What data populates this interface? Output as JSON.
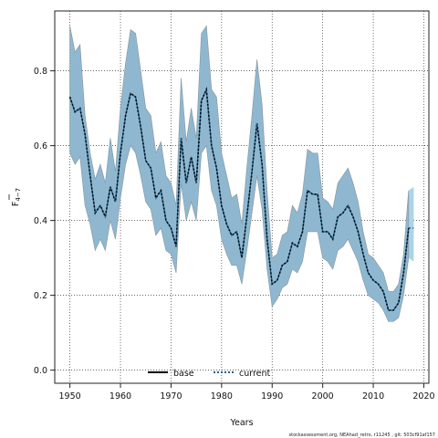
{
  "chart_data": {
    "type": "line",
    "xlabel": "Years",
    "ylabel_main": "F",
    "ylabel_sub": "4−7",
    "xlim": [
      1947,
      2021
    ],
    "ylim": [
      -0.035,
      0.96
    ],
    "xticks": [
      1950,
      1960,
      1970,
      1980,
      1990,
      2000,
      2010,
      2020
    ],
    "yticks": [
      0.0,
      0.2,
      0.4,
      0.6,
      0.8
    ],
    "ytick_labels": [
      "0.0",
      "0.2",
      "0.4",
      "0.6",
      "0.8"
    ],
    "grid": true,
    "legend_position": "bottom-center",
    "colors": {
      "band": "#8fb8d0",
      "band_edge": "#8a9aa6",
      "band_tail": "#aed3e8",
      "base": "#000000",
      "current": "#1f5f8b"
    },
    "series": [
      {
        "name": "base",
        "x": [
          1950,
          1951,
          1952,
          1953,
          1954,
          1955,
          1956,
          1957,
          1958,
          1959,
          1960,
          1961,
          1962,
          1963,
          1964,
          1965,
          1966,
          1967,
          1968,
          1969,
          1970,
          1971,
          1972,
          1973,
          1974,
          1975,
          1976,
          1977,
          1978,
          1979,
          1980,
          1981,
          1982,
          1983,
          1984,
          1985,
          1986,
          1987,
          1988,
          1989,
          1990,
          1991,
          1992,
          1993,
          1994,
          1995,
          1996,
          1997,
          1998,
          1999,
          2000,
          2001,
          2002,
          2003,
          2004,
          2005,
          2006,
          2007,
          2008,
          2009,
          2010,
          2011,
          2012,
          2013,
          2014,
          2015,
          2016,
          2017
        ],
        "values": [
          0.73,
          0.69,
          0.7,
          0.63,
          0.52,
          0.42,
          0.44,
          0.41,
          0.49,
          0.45,
          0.58,
          0.68,
          0.74,
          0.73,
          0.65,
          0.56,
          0.54,
          0.46,
          0.48,
          0.4,
          0.38,
          0.33,
          0.62,
          0.5,
          0.57,
          0.5,
          0.72,
          0.75,
          0.6,
          0.54,
          0.44,
          0.39,
          0.36,
          0.37,
          0.3,
          0.41,
          0.53,
          0.66,
          0.55,
          0.35,
          0.23,
          0.24,
          0.28,
          0.29,
          0.34,
          0.33,
          0.37,
          0.48,
          0.47,
          0.47,
          0.37,
          0.37,
          0.35,
          0.41,
          0.42,
          0.44,
          0.41,
          0.37,
          0.31,
          0.26,
          0.24,
          0.23,
          0.21,
          0.16,
          0.16,
          0.18,
          0.26,
          0.38
        ]
      },
      {
        "name": "current",
        "x": [
          1950,
          1951,
          1952,
          1953,
          1954,
          1955,
          1956,
          1957,
          1958,
          1959,
          1960,
          1961,
          1962,
          1963,
          1964,
          1965,
          1966,
          1967,
          1968,
          1969,
          1970,
          1971,
          1972,
          1973,
          1974,
          1975,
          1976,
          1977,
          1978,
          1979,
          1980,
          1981,
          1982,
          1983,
          1984,
          1985,
          1986,
          1987,
          1988,
          1989,
          1990,
          1991,
          1992,
          1993,
          1994,
          1995,
          1996,
          1997,
          1998,
          1999,
          2000,
          2001,
          2002,
          2003,
          2004,
          2005,
          2006,
          2007,
          2008,
          2009,
          2010,
          2011,
          2012,
          2013,
          2014,
          2015,
          2016,
          2017,
          2018
        ],
        "values": [
          0.73,
          0.69,
          0.7,
          0.63,
          0.52,
          0.42,
          0.44,
          0.41,
          0.49,
          0.45,
          0.58,
          0.68,
          0.74,
          0.73,
          0.65,
          0.56,
          0.54,
          0.46,
          0.48,
          0.4,
          0.38,
          0.33,
          0.62,
          0.5,
          0.57,
          0.5,
          0.72,
          0.75,
          0.6,
          0.54,
          0.44,
          0.39,
          0.36,
          0.37,
          0.3,
          0.41,
          0.53,
          0.66,
          0.55,
          0.35,
          0.23,
          0.24,
          0.28,
          0.29,
          0.34,
          0.33,
          0.37,
          0.48,
          0.47,
          0.47,
          0.37,
          0.37,
          0.35,
          0.41,
          0.42,
          0.44,
          0.41,
          0.37,
          0.31,
          0.26,
          0.24,
          0.23,
          0.21,
          0.16,
          0.16,
          0.18,
          0.26,
          0.38,
          0.38
        ]
      }
    ],
    "band": {
      "x": [
        1950,
        1951,
        1952,
        1953,
        1954,
        1955,
        1956,
        1957,
        1958,
        1959,
        1960,
        1961,
        1962,
        1963,
        1964,
        1965,
        1966,
        1967,
        1968,
        1969,
        1970,
        1971,
        1972,
        1973,
        1974,
        1975,
        1976,
        1977,
        1978,
        1979,
        1980,
        1981,
        1982,
        1983,
        1984,
        1985,
        1986,
        1987,
        1988,
        1989,
        1990,
        1991,
        1992,
        1993,
        1994,
        1995,
        1996,
        1997,
        1998,
        1999,
        2000,
        2001,
        2002,
        2003,
        2004,
        2005,
        2006,
        2007,
        2008,
        2009,
        2010,
        2011,
        2012,
        2013,
        2014,
        2015,
        2016,
        2017
      ],
      "upper": [
        0.92,
        0.85,
        0.87,
        0.68,
        0.58,
        0.51,
        0.55,
        0.5,
        0.62,
        0.53,
        0.7,
        0.82,
        0.91,
        0.9,
        0.8,
        0.7,
        0.68,
        0.58,
        0.61,
        0.52,
        0.5,
        0.44,
        0.78,
        0.61,
        0.7,
        0.62,
        0.9,
        0.92,
        0.75,
        0.73,
        0.58,
        0.52,
        0.46,
        0.47,
        0.39,
        0.54,
        0.68,
        0.83,
        0.71,
        0.48,
        0.3,
        0.31,
        0.36,
        0.37,
        0.44,
        0.42,
        0.47,
        0.59,
        0.58,
        0.58,
        0.46,
        0.45,
        0.43,
        0.5,
        0.52,
        0.54,
        0.5,
        0.45,
        0.37,
        0.31,
        0.3,
        0.28,
        0.26,
        0.21,
        0.21,
        0.23,
        0.31,
        0.48
      ],
      "lower": [
        0.58,
        0.55,
        0.57,
        0.44,
        0.39,
        0.32,
        0.35,
        0.32,
        0.4,
        0.35,
        0.46,
        0.55,
        0.6,
        0.58,
        0.52,
        0.45,
        0.43,
        0.36,
        0.38,
        0.32,
        0.31,
        0.26,
        0.5,
        0.4,
        0.45,
        0.4,
        0.58,
        0.6,
        0.48,
        0.44,
        0.35,
        0.31,
        0.28,
        0.28,
        0.23,
        0.32,
        0.42,
        0.52,
        0.43,
        0.27,
        0.17,
        0.19,
        0.22,
        0.23,
        0.27,
        0.26,
        0.29,
        0.37,
        0.37,
        0.37,
        0.3,
        0.29,
        0.27,
        0.32,
        0.33,
        0.35,
        0.32,
        0.29,
        0.24,
        0.2,
        0.19,
        0.18,
        0.16,
        0.13,
        0.13,
        0.14,
        0.2,
        0.3
      ]
    },
    "band_tail": {
      "x": [
        2017,
        2018
      ],
      "upper": [
        0.48,
        0.49
      ],
      "lower": [
        0.3,
        0.29
      ]
    }
  },
  "footnote": "stockassessment.org, NEAhad_retro, r11245 , git: 503cf91af157"
}
